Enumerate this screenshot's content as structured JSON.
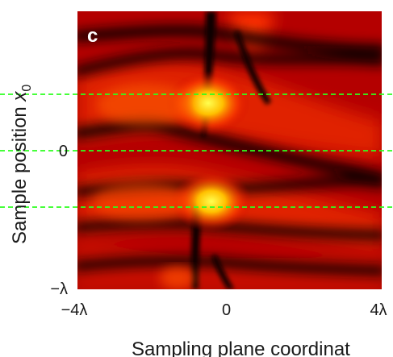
{
  "chart_data": {
    "type": "heatmap",
    "panel_label": "c",
    "xlabel": "Sampling plane coordinat",
    "ylabel_main": "Sample position ",
    "ylabel_var": "x",
    "ylabel_sub": "0",
    "x_ticks": [
      {
        "value": -4,
        "label": "−4λ"
      },
      {
        "value": 0,
        "label": "0"
      },
      {
        "value": 4,
        "label": "4λ"
      }
    ],
    "y_ticks": [
      {
        "value": 0,
        "label": "0"
      },
      {
        "value": -1,
        "label": "−λ"
      }
    ],
    "xlim": [
      -4,
      4
    ],
    "ylim": [
      -1,
      1
    ],
    "x_unit": "λ",
    "y_unit": "λ",
    "colormap": [
      "#000000",
      "#4a0000",
      "#b00000",
      "#e81800",
      "#ff6a00",
      "#ffc800",
      "#ffff3c"
    ],
    "reference_lines": {
      "y_values": [
        0.5,
        0,
        -0.5
      ],
      "color": "#2dff1e",
      "style": "dashed"
    },
    "features": {
      "dark_bands": [
        {
          "type": "vertical",
          "at_x": 0,
          "note": "dark vertical stripe near x=0"
        },
        {
          "type": "horizontal",
          "at_y": 0.05
        },
        {
          "type": "horizontal",
          "at_y": 0.65
        }
      ],
      "bright_spots": [
        {
          "x": -0.1,
          "y": 0.45,
          "level": "yellow"
        },
        {
          "x": -0.1,
          "y": -0.45,
          "level": "yellow"
        }
      ]
    }
  }
}
